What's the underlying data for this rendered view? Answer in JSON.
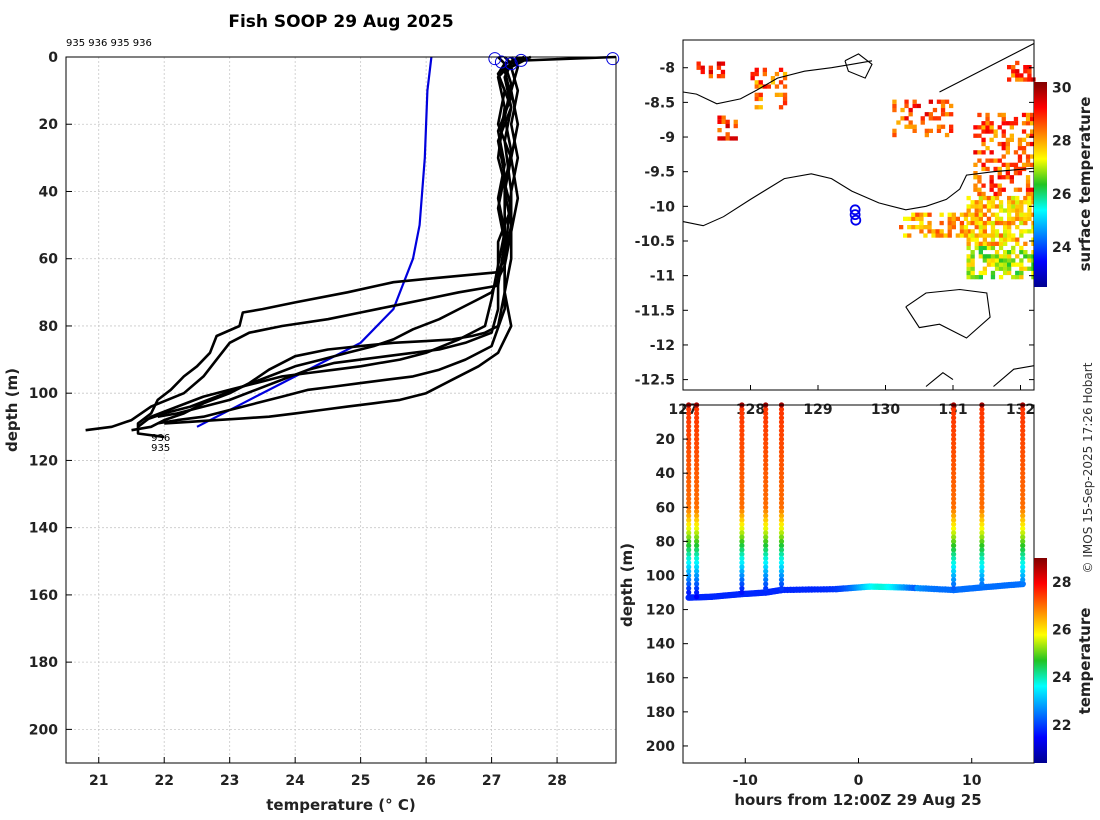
{
  "title": "Fish SOOP 29 Aug 2025",
  "profile_ids": "935 936 935 936",
  "watermark": "© IMOS 15-Sep-2025 17:26 Hobart",
  "chart_data": [
    {
      "type": "line",
      "panel": "profiles",
      "xlabel": "temperature (° C)",
      "ylabel": "depth (m)",
      "xlim": [
        20.5,
        28.9
      ],
      "ylim": [
        210,
        0
      ],
      "xticks": [
        21,
        22,
        23,
        24,
        25,
        26,
        27,
        28
      ],
      "yticks": [
        0,
        20,
        40,
        60,
        80,
        100,
        120,
        140,
        160,
        180,
        200
      ],
      "labels": [
        {
          "text": "936",
          "x": 21.8,
          "y": 113
        },
        {
          "text": "935",
          "x": 21.8,
          "y": 116
        }
      ],
      "series": [
        {
          "name": "climatology",
          "color": "#0000dd",
          "points": [
            [
              26.08,
              0
            ],
            [
              26.02,
              10
            ],
            [
              25.98,
              30
            ],
            [
              25.9,
              50
            ],
            [
              25.8,
              60
            ],
            [
              25.5,
              75
            ],
            [
              25.0,
              85
            ],
            [
              24.5,
              90
            ],
            [
              23.8,
              97
            ],
            [
              23.2,
              103
            ],
            [
              22.5,
              110
            ]
          ]
        },
        {
          "name": "profile-1",
          "color": "#000000",
          "points": [
            [
              27.1,
              0
            ],
            [
              27.2,
              2
            ],
            [
              27.1,
              5
            ],
            [
              27.2,
              10
            ],
            [
              27.1,
              20
            ],
            [
              27.3,
              30
            ],
            [
              27.2,
              40
            ],
            [
              27.3,
              50
            ],
            [
              27.2,
              60
            ],
            [
              27.1,
              64
            ],
            [
              26.0,
              66
            ],
            [
              25.5,
              67
            ],
            [
              24.8,
              70
            ],
            [
              24.0,
              73
            ],
            [
              23.5,
              75
            ],
            [
              23.2,
              76
            ],
            [
              23.15,
              80
            ],
            [
              22.8,
              83
            ],
            [
              22.7,
              88
            ],
            [
              22.5,
              92
            ],
            [
              22.3,
              95
            ],
            [
              22.1,
              99
            ],
            [
              21.9,
              102
            ],
            [
              21.8,
              106
            ],
            [
              21.6,
              109
            ],
            [
              21.6,
              112
            ],
            [
              22.0,
              113
            ]
          ]
        },
        {
          "name": "profile-2",
          "color": "#000000",
          "points": [
            [
              27.2,
              0
            ],
            [
              27.3,
              2
            ],
            [
              27.1,
              5
            ],
            [
              27.3,
              15
            ],
            [
              27.1,
              25
            ],
            [
              27.2,
              35
            ],
            [
              27.1,
              45
            ],
            [
              27.2,
              55
            ],
            [
              27.1,
              68
            ],
            [
              26.5,
              70
            ],
            [
              26.0,
              72
            ],
            [
              25.5,
              74
            ],
            [
              25.0,
              76
            ],
            [
              24.5,
              78
            ],
            [
              23.8,
              80
            ],
            [
              23.3,
              82
            ],
            [
              23.0,
              85
            ],
            [
              22.8,
              90
            ],
            [
              22.6,
              95
            ],
            [
              22.3,
              100
            ],
            [
              21.8,
              104
            ],
            [
              21.5,
              108
            ],
            [
              21.2,
              110
            ],
            [
              20.8,
              111
            ]
          ]
        },
        {
          "name": "profile-3",
          "color": "#000000",
          "points": [
            [
              27.4,
              0
            ],
            [
              27.3,
              2
            ],
            [
              27.2,
              6
            ],
            [
              27.3,
              15
            ],
            [
              27.2,
              25
            ],
            [
              27.3,
              40
            ],
            [
              27.2,
              60
            ],
            [
              27.2,
              70
            ],
            [
              27.1,
              80
            ],
            [
              26.9,
              82
            ],
            [
              26.7,
              83
            ],
            [
              26.4,
              84
            ],
            [
              26.0,
              84.5
            ],
            [
              25.5,
              85
            ],
            [
              25.0,
              86
            ],
            [
              24.5,
              87
            ],
            [
              24.0,
              89
            ],
            [
              23.6,
              93
            ],
            [
              23.3,
              97
            ],
            [
              23.0,
              100
            ],
            [
              22.6,
              103
            ],
            [
              22.3,
              106
            ],
            [
              22.0,
              108
            ],
            [
              21.8,
              110
            ],
            [
              21.5,
              111
            ]
          ]
        },
        {
          "name": "profile-4",
          "color": "#000000",
          "points": [
            [
              27.6,
              0
            ],
            [
              27.3,
              2
            ],
            [
              27.1,
              6
            ],
            [
              27.2,
              15
            ],
            [
              27.1,
              30
            ],
            [
              27.3,
              45
            ],
            [
              27.1,
              55
            ],
            [
              27.1,
              75
            ],
            [
              27.0,
              82
            ],
            [
              26.6,
              85
            ],
            [
              26.2,
              87
            ],
            [
              25.8,
              88
            ],
            [
              25.4,
              89
            ],
            [
              25.0,
              90
            ],
            [
              24.6,
              91
            ],
            [
              24.2,
              93
            ],
            [
              23.8,
              96
            ],
            [
              23.4,
              99
            ],
            [
              23.0,
              102
            ],
            [
              22.6,
              104
            ],
            [
              22.2,
              106
            ],
            [
              21.9,
              107
            ]
          ]
        },
        {
          "name": "profile-5",
          "color": "#000000",
          "points": [
            [
              27.5,
              0
            ],
            [
              27.2,
              2
            ],
            [
              27.3,
              8
            ],
            [
              27.2,
              18
            ],
            [
              27.3,
              28
            ],
            [
              27.2,
              38
            ],
            [
              27.2,
              62
            ],
            [
              27.0,
              70
            ],
            [
              26.8,
              72
            ],
            [
              26.5,
              75
            ],
            [
              26.2,
              78
            ],
            [
              25.8,
              81
            ],
            [
              25.5,
              84
            ],
            [
              25.2,
              86
            ],
            [
              24.8,
              88
            ],
            [
              24.4,
              90
            ],
            [
              24.0,
              92
            ],
            [
              23.6,
              95
            ],
            [
              23.2,
              98
            ],
            [
              22.8,
              101
            ],
            [
              22.4,
              104
            ],
            [
              22.0,
              106
            ],
            [
              21.7,
              108
            ]
          ]
        },
        {
          "name": "profile-6",
          "color": "#000000",
          "points": [
            [
              28.9,
              0
            ],
            [
              27.5,
              1
            ],
            [
              27.2,
              4
            ],
            [
              27.3,
              12
            ],
            [
              27.1,
              22
            ],
            [
              27.2,
              32
            ],
            [
              27.1,
              42
            ],
            [
              27.2,
              52
            ],
            [
              27.1,
              62
            ],
            [
              27.0,
              72
            ],
            [
              26.9,
              80
            ],
            [
              26.5,
              84
            ],
            [
              26.0,
              88
            ],
            [
              25.6,
              90
            ],
            [
              25.3,
              91
            ],
            [
              25.0,
              92
            ],
            [
              24.6,
              93
            ],
            [
              24.2,
              94
            ],
            [
              23.8,
              95
            ],
            [
              23.4,
              97
            ],
            [
              23.0,
              99
            ],
            [
              22.6,
              101
            ],
            [
              22.2,
              104
            ],
            [
              21.8,
              107
            ],
            [
              21.6,
              110
            ]
          ]
        },
        {
          "name": "profile-7",
          "color": "#000000",
          "points": [
            [
              27.5,
              0
            ],
            [
              27.3,
              3
            ],
            [
              27.4,
              10
            ],
            [
              27.3,
              20
            ],
            [
              27.4,
              30
            ],
            [
              27.3,
              40
            ],
            [
              27.3,
              52
            ],
            [
              27.2,
              62
            ],
            [
              27.2,
              75
            ],
            [
              27.0,
              86
            ],
            [
              26.6,
              90
            ],
            [
              26.2,
              93
            ],
            [
              25.8,
              95
            ],
            [
              25.4,
              96
            ],
            [
              25.0,
              97
            ],
            [
              24.6,
              98
            ],
            [
              24.2,
              99
            ],
            [
              23.8,
              101
            ],
            [
              23.4,
              103
            ],
            [
              23.0,
              105
            ],
            [
              22.6,
              107
            ],
            [
              22.2,
              108
            ],
            [
              21.9,
              109
            ]
          ]
        },
        {
          "name": "profile-8",
          "color": "#000000",
          "points": [
            [
              27.3,
              0
            ],
            [
              27.4,
              3
            ],
            [
              27.3,
              10
            ],
            [
              27.4,
              20
            ],
            [
              27.3,
              30
            ],
            [
              27.4,
              42
            ],
            [
              27.3,
              52
            ],
            [
              27.3,
              60
            ],
            [
              27.2,
              70
            ],
            [
              27.3,
              80
            ],
            [
              27.1,
              88
            ],
            [
              26.8,
              92
            ],
            [
              26.4,
              96
            ],
            [
              26.0,
              100
            ],
            [
              25.6,
              102
            ],
            [
              25.2,
              103
            ],
            [
              24.8,
              104
            ],
            [
              24.4,
              105
            ],
            [
              24.0,
              106
            ],
            [
              23.6,
              107
            ],
            [
              23.2,
              107.5
            ],
            [
              22.8,
              108
            ],
            [
              22.4,
              108.5
            ],
            [
              22.0,
              109
            ]
          ]
        }
      ],
      "surface_markers": [
        [
          27.05,
          0.5
        ],
        [
          27.15,
          1.5
        ],
        [
          27.3,
          2
        ],
        [
          27.45,
          1
        ],
        [
          28.85,
          0.5
        ]
      ]
    },
    {
      "type": "heatmap",
      "panel": "map",
      "colorbar_label": "surface temperature",
      "colorbar_range": [
        22.5,
        30.2
      ],
      "colorbar_ticks": [
        24,
        26,
        28,
        30
      ],
      "xlim": [
        127,
        132.2
      ],
      "ylim": [
        -12.65,
        -7.6
      ],
      "xticks": [
        127,
        128,
        129,
        130,
        131,
        132
      ],
      "xtick_labels": [
        "127",
        "128",
        "129",
        "130",
        "131",
        "132"
      ],
      "yticks": [
        -8,
        -8.5,
        -9,
        -9.5,
        -10,
        -10.5,
        -11,
        -11.5,
        -12,
        -12.5
      ],
      "stations": [
        [
          129.55,
          -10.05
        ],
        [
          129.55,
          -10.12
        ],
        [
          129.56,
          -10.2
        ]
      ]
    },
    {
      "type": "scatter",
      "panel": "timeseries",
      "xlabel": "hours from 12:00Z 29 Aug 25",
      "ylabel": "depth (m)",
      "colorbar_label": "temperature",
      "colorbar_range": [
        20.4,
        29.0
      ],
      "colorbar_ticks": [
        22,
        24,
        26,
        28
      ],
      "xlim": [
        -15.5,
        15.5
      ],
      "ylim": [
        210,
        0
      ],
      "xticks": [
        -10,
        0,
        10
      ],
      "yticks": [
        20,
        40,
        60,
        80,
        100,
        120,
        140,
        160,
        180,
        200
      ],
      "casts": [
        {
          "hours": -15.0,
          "max_depth": 112,
          "bottom_temp": 21.5
        },
        {
          "hours": -14.3,
          "max_depth": 113,
          "bottom_temp": 21.4
        },
        {
          "hours": -10.3,
          "max_depth": 110,
          "bottom_temp": 21.6
        },
        {
          "hours": -8.2,
          "max_depth": 109,
          "bottom_temp": 21.8
        },
        {
          "hours": -6.8,
          "max_depth": 108,
          "bottom_temp": 21.9
        },
        {
          "hours": 8.4,
          "max_depth": 108,
          "bottom_temp": 22.2
        },
        {
          "hours": 10.9,
          "max_depth": 107,
          "bottom_temp": 22.3
        },
        {
          "hours": 14.5,
          "max_depth": 105,
          "bottom_temp": 22.5
        }
      ],
      "bottom_track": [
        [
          -15.0,
          113
        ],
        [
          -13.0,
          112.5
        ],
        [
          -10.5,
          111
        ],
        [
          -8.2,
          110
        ],
        [
          -6.8,
          108.5
        ],
        [
          -2.0,
          108
        ],
        [
          1.0,
          106.5
        ],
        [
          4.0,
          107
        ],
        [
          8.4,
          108.5
        ],
        [
          10.9,
          107
        ],
        [
          14.5,
          105
        ]
      ]
    }
  ]
}
